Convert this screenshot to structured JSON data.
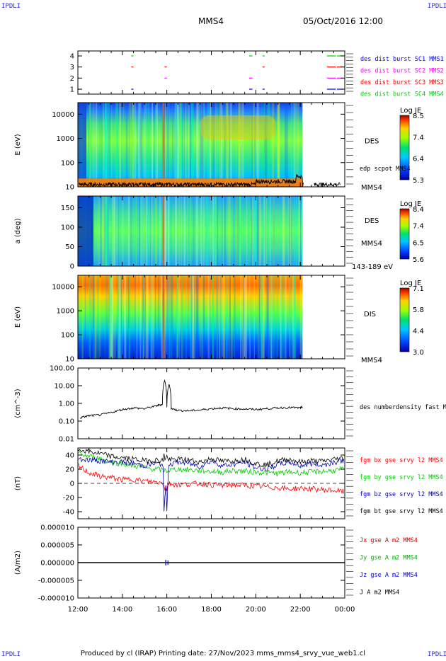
{
  "corners": {
    "tl": "IPDLI",
    "tr": "IPDLI",
    "bl": "IPDLI",
    "br": "IPDLI"
  },
  "header": {
    "spacecraft": "MMS4",
    "date": "05/Oct/2016 12:00"
  },
  "footer": "Produced by cl (IRAP)   Printing date: 27/Nov/2023   mms_mms4_srvy_vue_web1.cl",
  "time_axis": {
    "ticks": [
      "12:00",
      "14:00",
      "16:00",
      "18:00",
      "20:00",
      "22:00",
      "00:00"
    ]
  },
  "chart_data": [
    {
      "type": "table",
      "panel": "burst",
      "yticks": [
        "1",
        "2",
        "3",
        "4"
      ],
      "legend": [
        {
          "label": "des dist burst SC1 MMS1",
          "color": "#0000ff"
        },
        {
          "label": "des dist burst SC2 MMS2",
          "color": "#ff00ff"
        },
        {
          "label": "des dist burst SC3 MMS3",
          "color": "#ff0000"
        },
        {
          "label": "des dist burst SC4 MMS4",
          "color": "#00cc00"
        }
      ],
      "intervals_hours": [
        [
          12.0,
          12.05
        ],
        [
          14.4,
          14.5
        ],
        [
          15.9,
          16.0
        ],
        [
          19.7,
          19.85
        ],
        [
          20.3,
          20.4
        ],
        [
          23.2,
          23.6
        ],
        [
          23.65,
          23.95
        ]
      ]
    },
    {
      "type": "heatmap",
      "panel": "des-energy",
      "ylabel": "E (eV)",
      "yticks": [
        "10",
        "100",
        "1000",
        "10000"
      ],
      "ylim": [
        10,
        30000
      ],
      "yscale": "log",
      "colorbar": {
        "title": "Log JE",
        "labels": [
          "8.5",
          "7.4",
          "6.4",
          "5.3"
        ]
      },
      "labels": [
        "DES",
        "MMS4"
      ],
      "overlay": {
        "label": "edp scpot MMS4",
        "color": "#000000",
        "approx_eV": 15
      },
      "data_end_hour": 22.1
    },
    {
      "type": "heatmap",
      "panel": "des-pitch",
      "ylabel": "a (deg)",
      "yticks": [
        "0",
        "50",
        "100",
        "150"
      ],
      "ylim": [
        0,
        180
      ],
      "colorbar": {
        "title": "Log JE",
        "labels": [
          "8.4",
          "7.4",
          "6.5",
          "5.6"
        ]
      },
      "labels": [
        "DES",
        "MMS4",
        "143-189 eV"
      ],
      "data_end_hour": 22.1
    },
    {
      "type": "heatmap",
      "panel": "dis-energy",
      "ylabel": "E (eV)",
      "yticks": [
        "10",
        "100",
        "1000",
        "10000"
      ],
      "ylim": [
        10,
        30000
      ],
      "yscale": "log",
      "colorbar": {
        "title": "Log JE",
        "labels": [
          "7.1",
          "5.8",
          "4.4",
          "3.0"
        ]
      },
      "labels": [
        "DIS",
        "MMS4"
      ],
      "data_end_hour": 22.1
    },
    {
      "type": "line",
      "panel": "density",
      "ylabel": "(cm^-3)",
      "yticks": [
        "0.01",
        "0.10",
        "1.00",
        "10.00",
        "100.00"
      ],
      "ylim": [
        0.01,
        100
      ],
      "yscale": "log",
      "series": [
        {
          "name": "des numberdensity fast M",
          "color": "#000000",
          "x": [
            12.1,
            12.5,
            13.0,
            13.5,
            14.0,
            14.5,
            15.0,
            15.5,
            15.8,
            15.9,
            16.0,
            16.1,
            16.2,
            16.5,
            17.0,
            17.5,
            18.0,
            18.5,
            19.0,
            19.5,
            20.0,
            20.5,
            21.0,
            21.5,
            22.0,
            22.1
          ],
          "y": [
            0.15,
            0.2,
            0.22,
            0.3,
            0.45,
            0.55,
            0.5,
            0.7,
            0.9,
            20,
            0.6,
            12,
            0.5,
            0.4,
            0.38,
            0.42,
            0.5,
            0.55,
            0.5,
            0.48,
            0.45,
            0.5,
            0.55,
            0.58,
            0.55,
            0.6
          ]
        }
      ]
    },
    {
      "type": "line",
      "panel": "magnetic-field",
      "ylabel": "(nT)",
      "yticks": [
        "-40",
        "-20",
        "0",
        "20",
        "40"
      ],
      "ylim": [
        -50,
        50
      ],
      "series": [
        {
          "name": "fgm bx gse srvy l2 MMS4",
          "color": "#ff0000",
          "x": [
            12,
            12.5,
            13,
            13.5,
            14,
            14.5,
            15,
            15.5,
            16,
            16.5,
            17,
            17.5,
            18,
            18.5,
            19,
            19.5,
            20,
            20.5,
            21,
            21.5,
            22,
            22.5,
            23,
            23.5,
            24
          ],
          "y": [
            25,
            15,
            10,
            8,
            5,
            6,
            3,
            2,
            0,
            -2,
            -1,
            0,
            -2,
            -3,
            -2,
            -3,
            -4,
            -5,
            -6,
            -8,
            -7,
            -8,
            -9,
            -10,
            -12
          ]
        },
        {
          "name": "fgm by gse srvy l2 MMS4",
          "color": "#00cc00",
          "x": [
            12,
            12.5,
            13,
            13.5,
            14,
            14.5,
            15,
            15.5,
            16,
            16.5,
            17,
            17.5,
            18,
            18.5,
            19,
            19.5,
            20,
            20.5,
            21,
            21.5,
            22,
            22.5,
            23,
            23.5,
            24
          ],
          "y": [
            42,
            38,
            35,
            30,
            28,
            25,
            22,
            20,
            18,
            20,
            19,
            18,
            17,
            16,
            18,
            17,
            16,
            15,
            14,
            16,
            15,
            16,
            17,
            18,
            20
          ]
        },
        {
          "name": "fgm bz gse srvy l2 MMS4",
          "color": "#0000aa",
          "x": [
            12,
            12.5,
            13,
            13.5,
            14,
            14.5,
            15,
            15.5,
            16,
            16.5,
            17,
            17.5,
            18,
            18.5,
            19,
            19.5,
            20,
            20.5,
            21,
            21.5,
            22,
            22.5,
            23,
            23.5,
            24
          ],
          "y": [
            35,
            33,
            32,
            30,
            30,
            28,
            25,
            28,
            26,
            30,
            28,
            24,
            32,
            25,
            27,
            30,
            22,
            20,
            27,
            30,
            25,
            28,
            26,
            30,
            33
          ]
        },
        {
          "name": "fgm bt gse srvy l2 MMS4",
          "color": "#000000",
          "x": [
            12,
            12.5,
            13,
            13.5,
            14,
            14.5,
            15,
            15.5,
            16,
            16.5,
            17,
            17.5,
            18,
            18.5,
            19,
            19.5,
            20,
            20.5,
            21,
            21.5,
            22,
            22.5,
            23,
            23.5,
            24
          ],
          "y": [
            48,
            45,
            42,
            38,
            36,
            34,
            32,
            33,
            32,
            34,
            33,
            30,
            35,
            31,
            32,
            34,
            28,
            26,
            32,
            34,
            30,
            32,
            31,
            34,
            36
          ]
        }
      ]
    },
    {
      "type": "line",
      "panel": "current-density",
      "ylabel": "(A/m2)",
      "yticks": [
        "-0.000010",
        "-0.000005",
        "0.000000",
        "0.000005",
        "0.000010"
      ],
      "ylim": [
        -1e-05,
        1e-05
      ],
      "series": [
        {
          "name": "Jx gse A m2 MMS4",
          "color": "#cc0000"
        },
        {
          "name": "Jy gse A m2 MMS4",
          "color": "#00aa00"
        },
        {
          "name": "Jz gse A m2 MMS4",
          "color": "#0000cc"
        },
        {
          "name": "J A m2 MMS4",
          "color": "#000000"
        }
      ]
    }
  ]
}
